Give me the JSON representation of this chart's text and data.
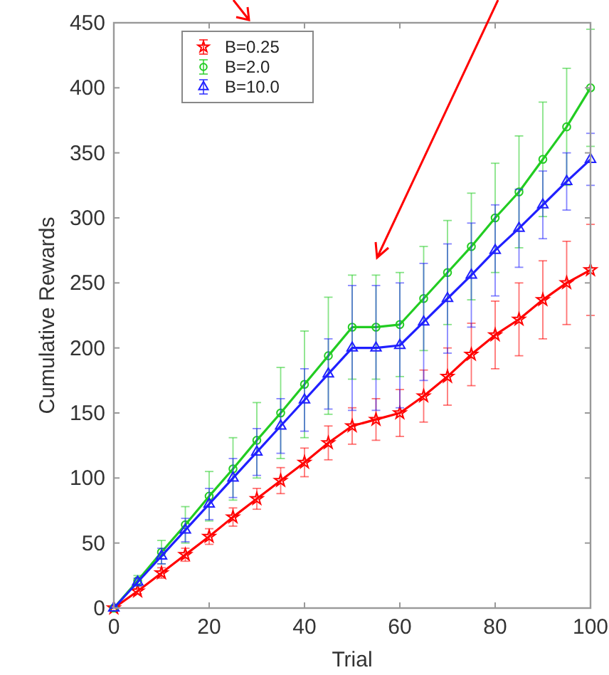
{
  "chart_data": {
    "type": "line",
    "xlabel": "Trial",
    "ylabel": "Cumulative Rewards",
    "x": [
      0,
      5,
      10,
      15,
      20,
      25,
      30,
      35,
      40,
      45,
      50,
      55,
      60,
      65,
      70,
      75,
      80,
      85,
      90,
      95,
      100
    ],
    "series": [
      {
        "name": "B=0.25",
        "color": "#ff0000",
        "marker": "star",
        "values": [
          0,
          13,
          27,
          41,
          55,
          70,
          84,
          98,
          112,
          127,
          140,
          145,
          150,
          163,
          178,
          195,
          210,
          222,
          237,
          250,
          260
        ],
        "errors": [
          0,
          2,
          4,
          5,
          6,
          7,
          8,
          10,
          11,
          13,
          14,
          16,
          18,
          20,
          22,
          24,
          26,
          28,
          30,
          32,
          35
        ]
      },
      {
        "name": "B=2.0",
        "color": "#22cc22",
        "marker": "circle",
        "values": [
          0,
          21,
          43,
          64,
          86,
          107,
          129,
          150,
          172,
          194,
          216,
          216,
          218,
          238,
          258,
          278,
          300,
          320,
          345,
          370,
          400
        ],
        "errors": [
          0,
          4,
          9,
          14,
          19,
          24,
          29,
          35,
          41,
          45,
          40,
          40,
          40,
          40,
          40,
          41,
          42,
          43,
          44,
          45,
          45
        ]
      },
      {
        "name": "B=10.0",
        "color": "#2020ff",
        "marker": "triangle",
        "values": [
          0,
          20,
          40,
          60,
          80,
          100,
          120,
          140,
          160,
          180,
          200,
          200,
          202,
          220,
          238,
          256,
          275,
          292,
          310,
          328,
          345
        ],
        "errors": [
          0,
          3,
          6,
          9,
          12,
          15,
          18,
          21,
          24,
          27,
          48,
          48,
          48,
          45,
          42,
          40,
          35,
          30,
          26,
          22,
          20
        ]
      }
    ],
    "xlim": [
      0,
      100
    ],
    "xticks": [
      0,
      20,
      40,
      60,
      80,
      100
    ],
    "ylim": [
      0,
      450
    ],
    "yticks": [
      0,
      50,
      100,
      150,
      200,
      250,
      300,
      350,
      400,
      450
    ],
    "grid": false,
    "legend": "top left",
    "line_style": "solid"
  }
}
